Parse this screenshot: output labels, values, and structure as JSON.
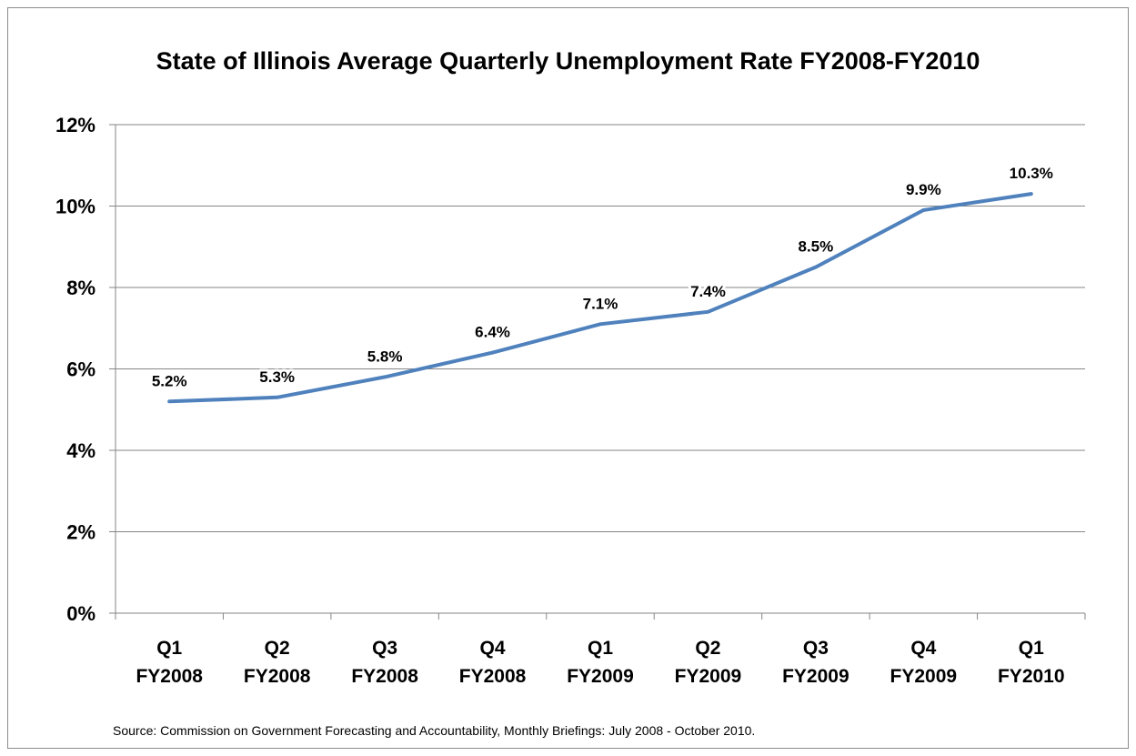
{
  "chart_data": {
    "type": "line",
    "title": "State of Illinois Average Quarterly Unemployment Rate FY2008-FY2010",
    "xlabel": "",
    "ylabel": "",
    "categories": [
      [
        "Q1",
        "FY2008"
      ],
      [
        "Q2",
        "FY2008"
      ],
      [
        "Q3",
        "FY2008"
      ],
      [
        "Q4",
        "FY2008"
      ],
      [
        "Q1",
        "FY2009"
      ],
      [
        "Q2",
        "FY2009"
      ],
      [
        "Q3",
        "FY2009"
      ],
      [
        "Q4",
        "FY2009"
      ],
      [
        "Q1",
        "FY2010"
      ]
    ],
    "series": [
      {
        "values": [
          5.2,
          5.3,
          5.8,
          6.4,
          7.1,
          7.4,
          8.5,
          9.9,
          10.3
        ],
        "data_labels": [
          "5.2%",
          "5.3%",
          "5.8%",
          "6.4%",
          "7.1%",
          "7.4%",
          "8.5%",
          "9.9%",
          "10.3%"
        ],
        "color": "#4F81BD"
      }
    ],
    "ylim": [
      0,
      12
    ],
    "yticks": [
      0,
      2,
      4,
      6,
      8,
      10,
      12
    ],
    "ytick_labels": [
      "0%",
      "2%",
      "4%",
      "6%",
      "8%",
      "10%",
      "12%"
    ],
    "grid": true,
    "grid_color": "#868686",
    "legend": "none"
  },
  "source_note": "Source: Commission on  Government Forecasting and Accountability, Monthly Briefings: July 2008 - October 2010."
}
